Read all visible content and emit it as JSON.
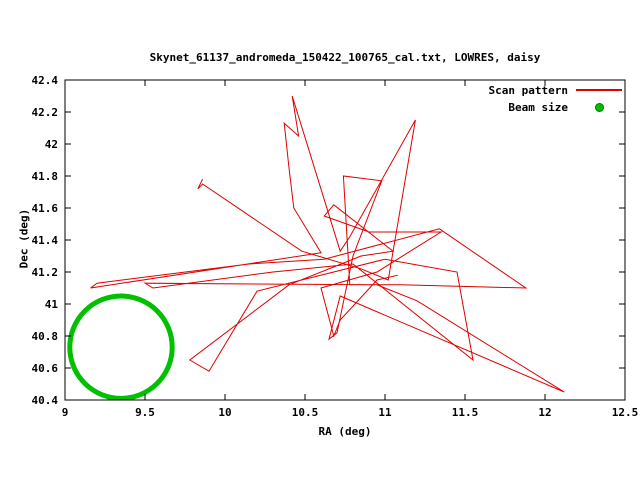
{
  "chart_data": {
    "type": "line",
    "title": "Skynet_61137_andromeda_150422_100765_cal.txt, LOWRES, daisy",
    "xlabel": "RA (deg)",
    "ylabel": "Dec (deg)",
    "xlim": [
      9,
      12.5
    ],
    "ylim": [
      40.4,
      42.4
    ],
    "grid": false,
    "legend_position": "top-right-inside",
    "xticks": {
      "values": [
        9,
        9.5,
        10,
        10.5,
        11,
        11.5,
        12,
        12.5
      ],
      "labels": [
        "9",
        "9.5",
        "10",
        "10.5",
        "11",
        "11.5",
        "12",
        "12.5"
      ]
    },
    "yticks": {
      "values": [
        40.4,
        40.6,
        40.8,
        41,
        41.2,
        41.4,
        41.6,
        41.8,
        42,
        42.2,
        42.4
      ],
      "labels": [
        "40.4",
        "40.6",
        "40.8",
        "41",
        "41.2",
        "41.4",
        "41.6",
        "41.8",
        "42",
        "42.2",
        "42.4"
      ]
    },
    "colors": {
      "scan": "#dd0000",
      "beam": "#00c000",
      "axis": "#000000",
      "background": "#ffffff"
    },
    "legend": [
      {
        "label": "Scan pattern",
        "color": "#dd0000",
        "marker": "line"
      },
      {
        "label": "Beam size",
        "color": "#00c000",
        "marker": "circle"
      }
    ],
    "beam": {
      "center_ra": 9.35,
      "center_dec": 40.73,
      "radius_deg": 0.32
    },
    "series": [
      {
        "name": "Scan pattern",
        "type": "line",
        "points": [
          [
            9.86,
            41.78
          ],
          [
            9.83,
            41.72
          ],
          [
            9.86,
            41.75
          ],
          [
            10.48,
            41.33
          ],
          [
            10.85,
            41.22
          ],
          [
            11.02,
            41.15
          ],
          [
            11.19,
            42.15
          ],
          [
            10.78,
            41.42
          ],
          [
            10.72,
            41.33
          ],
          [
            10.42,
            42.3
          ],
          [
            10.46,
            42.05
          ],
          [
            10.37,
            42.13
          ],
          [
            10.4,
            41.85
          ],
          [
            10.43,
            41.6
          ],
          [
            10.6,
            41.32
          ],
          [
            9.16,
            41.1
          ],
          [
            9.2,
            41.13
          ],
          [
            10.15,
            41.25
          ],
          [
            10.62,
            41.28
          ],
          [
            11.34,
            41.47
          ],
          [
            11.88,
            41.1
          ],
          [
            11.1,
            41.12
          ],
          [
            10.78,
            41.12
          ],
          [
            10.74,
            41.8
          ],
          [
            10.98,
            41.77
          ],
          [
            10.8,
            41.3
          ],
          [
            10.7,
            40.82
          ],
          [
            10.65,
            40.78
          ],
          [
            10.72,
            41.05
          ],
          [
            12.12,
            40.45
          ],
          [
            11.2,
            41.02
          ],
          [
            10.95,
            41.12
          ],
          [
            9.5,
            41.13
          ],
          [
            9.55,
            41.1
          ],
          [
            10.3,
            41.2
          ],
          [
            10.8,
            41.25
          ],
          [
            11.55,
            40.65
          ],
          [
            11.45,
            41.2
          ],
          [
            11.0,
            41.28
          ],
          [
            10.2,
            41.08
          ],
          [
            9.9,
            40.58
          ],
          [
            9.78,
            40.65
          ],
          [
            10.4,
            41.12
          ],
          [
            10.85,
            41.3
          ],
          [
            11.05,
            41.33
          ],
          [
            10.68,
            41.62
          ],
          [
            10.62,
            41.55
          ],
          [
            10.9,
            41.45
          ],
          [
            11.35,
            41.45
          ],
          [
            10.95,
            41.2
          ],
          [
            10.6,
            41.1
          ],
          [
            10.68,
            40.8
          ],
          [
            10.72,
            40.9
          ],
          [
            10.95,
            41.15
          ],
          [
            11.08,
            41.18
          ]
        ]
      }
    ]
  }
}
